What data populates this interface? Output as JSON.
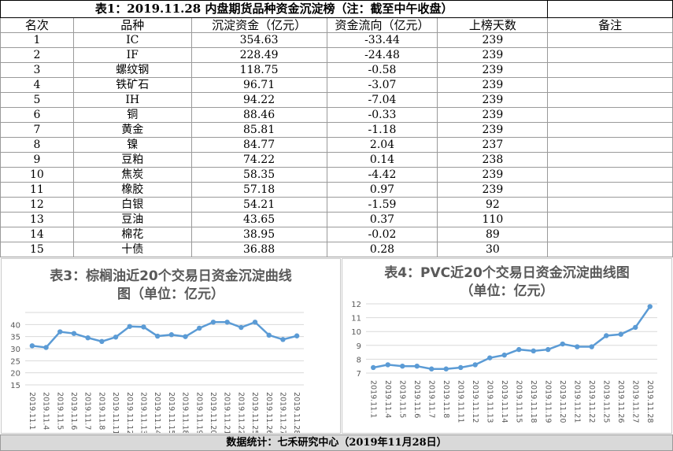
{
  "table": {
    "title": "表1：2019.11.28 内盘期货品种资金沉淀榜（注：截至中午收盘）",
    "headers": [
      "名次",
      "品种",
      "沉淀资金（亿元）",
      "资金流向（亿元）",
      "上榜天数",
      "备注"
    ],
    "rows": [
      {
        "rank": "1",
        "name": "IC",
        "capital": "354.63",
        "flow": "-33.44",
        "days": "239",
        "note": ""
      },
      {
        "rank": "2",
        "name": "IF",
        "capital": "228.49",
        "flow": "-24.48",
        "days": "239",
        "note": ""
      },
      {
        "rank": "3",
        "name": "螺纹钢",
        "capital": "118.75",
        "flow": "-0.58",
        "days": "239",
        "note": ""
      },
      {
        "rank": "4",
        "name": "铁矿石",
        "capital": "96.71",
        "flow": "-3.07",
        "days": "239",
        "note": ""
      },
      {
        "rank": "5",
        "name": "IH",
        "capital": "94.22",
        "flow": "-7.04",
        "days": "239",
        "note": ""
      },
      {
        "rank": "6",
        "name": "铜",
        "capital": "88.46",
        "flow": "-0.33",
        "days": "239",
        "note": ""
      },
      {
        "rank": "7",
        "name": "黄金",
        "capital": "85.81",
        "flow": "-1.18",
        "days": "239",
        "note": ""
      },
      {
        "rank": "8",
        "name": "镍",
        "capital": "84.77",
        "flow": "2.04",
        "days": "237",
        "note": ""
      },
      {
        "rank": "9",
        "name": "豆粕",
        "capital": "74.22",
        "flow": "0.14",
        "days": "238",
        "note": ""
      },
      {
        "rank": "10",
        "name": "焦炭",
        "capital": "58.35",
        "flow": "-4.42",
        "days": "239",
        "note": ""
      },
      {
        "rank": "11",
        "name": "橡胶",
        "capital": "57.18",
        "flow": "0.97",
        "days": "239",
        "note": ""
      },
      {
        "rank": "12",
        "name": "白银",
        "capital": "54.21",
        "flow": "-1.59",
        "days": "92",
        "note": ""
      },
      {
        "rank": "13",
        "name": "豆油",
        "capital": "43.65",
        "flow": "0.37",
        "days": "110",
        "note": ""
      },
      {
        "rank": "14",
        "name": "棉花",
        "capital": "38.95",
        "flow": "-0.02",
        "days": "89",
        "note": ""
      },
      {
        "rank": "15",
        "name": "十债",
        "capital": "36.88",
        "flow": "0.28",
        "days": "30",
        "note": ""
      }
    ]
  },
  "chart_data": [
    {
      "type": "line",
      "title_line1": "表3：棕榈油近20个交易日资金沉淀曲线",
      "title_line2": "图（单位：亿元）",
      "x": [
        "2019.11.1",
        "2019.11.4",
        "2019.11.5",
        "2019.11.6",
        "2019.11.7",
        "2019.11.8",
        "2019.11.11",
        "2019.11.12",
        "2019.11.13",
        "2019.11.14",
        "2019.11.15",
        "2019.11.18",
        "2019.11.19",
        "2019.11.20",
        "2019.11.21",
        "2019.11.22",
        "2019.11.25",
        "2019.11.26",
        "2019.11.27",
        "2019.11.28"
      ],
      "values": [
        31.2,
        30.5,
        37.0,
        36.3,
        34.5,
        33.0,
        34.8,
        39.2,
        39.0,
        35.2,
        35.8,
        35.0,
        38.5,
        41.0,
        41.0,
        38.8,
        41.0,
        35.6,
        33.8,
        35.3
      ],
      "yticks": [
        "15",
        "20",
        "25",
        "30",
        "35",
        "40"
      ],
      "ylim": [
        15,
        45
      ],
      "line_color": "#5B9BD5",
      "grid": true
    },
    {
      "type": "line",
      "title_line1": "表4：PVC近20个交易日资金沉淀曲线图",
      "title_line2": "（单位：亿元）",
      "x": [
        "2019.11.1",
        "2019.11.4",
        "2019.11.5",
        "2019.11.6",
        "2019.11.7",
        "2019.11.8",
        "2019.11.11",
        "2019.11.12",
        "2019.11.13",
        "2019.11.14",
        "2019.11.15",
        "2019.11.18",
        "2019.11.19",
        "2019.11.20",
        "2019.11.21",
        "2019.11.22",
        "2019.11.25",
        "2019.11.26",
        "2019.11.27",
        "2019.11.28"
      ],
      "values": [
        7.4,
        7.6,
        7.5,
        7.5,
        7.3,
        7.3,
        7.4,
        7.6,
        8.1,
        8.3,
        8.7,
        8.6,
        8.7,
        9.1,
        8.9,
        8.9,
        9.7,
        9.8,
        10.3,
        11.8
      ],
      "yticks": [
        "7",
        "8",
        "9",
        "10",
        "11",
        "12"
      ],
      "ylim": [
        7,
        12
      ],
      "line_color": "#5B9BD5",
      "grid": true
    }
  ],
  "footer": "数据统计：七禾研究中心（2019年11月28日）"
}
